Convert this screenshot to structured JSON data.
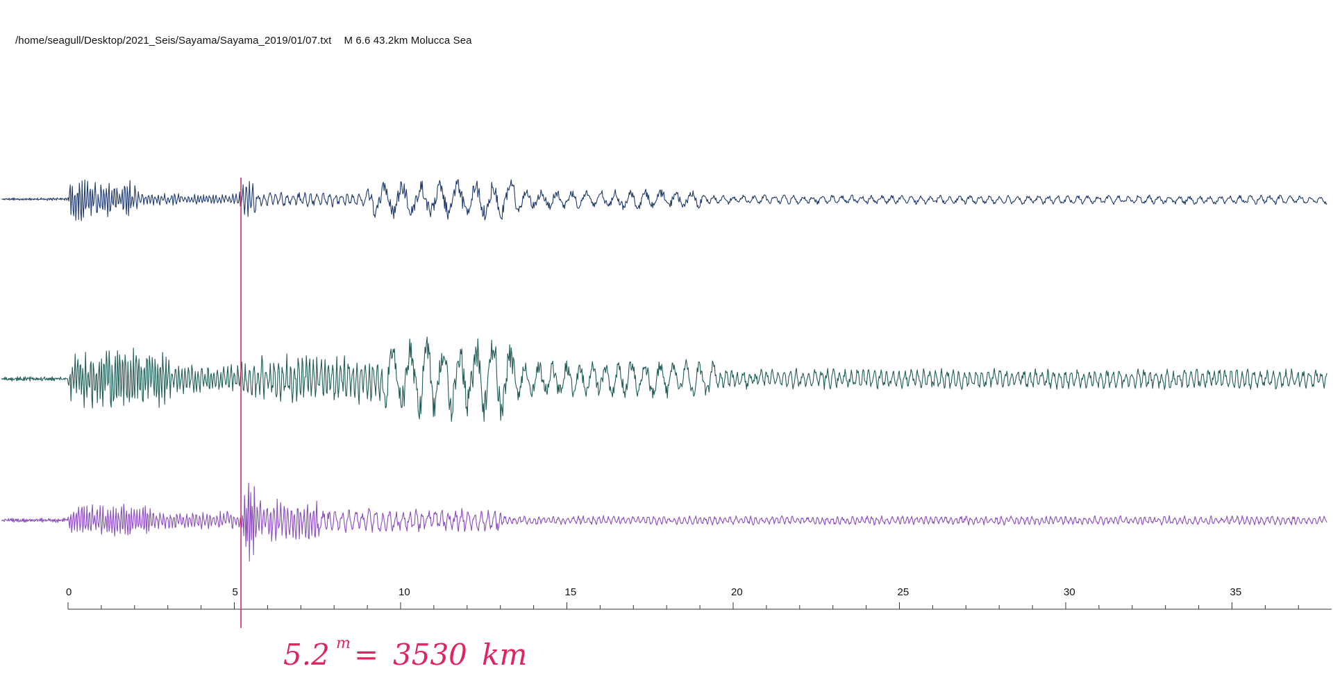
{
  "header": {
    "file_path": "/home/seagull/Desktop/2021_Seis/Sayama/Sayama_2019/01/07.txt",
    "event_info": "M 6.6 43.2km Molucca Sea"
  },
  "colors": {
    "trace_1": "#1f3a6e",
    "trace_2": "#1f5c55",
    "trace_3": "#8a4bbf",
    "marker": "#e0245e",
    "axis": "#333333"
  },
  "chart_data": {
    "type": "line",
    "title": "",
    "xlabel": "",
    "ylabel": "",
    "xlim": [
      0,
      38
    ],
    "x_ticks": [
      0,
      5,
      10,
      15,
      20,
      25,
      30,
      35
    ],
    "x_tick_labels": [
      "0",
      "5",
      "10",
      "15",
      "20",
      "25",
      "30",
      "35"
    ],
    "minor_tick_step": 1,
    "grid": false,
    "series": [
      {
        "trace": 1,
        "segments": [
          {
            "t0": -2.0,
            "t1": 0.0,
            "amp": 0.04,
            "period": 0.05
          },
          {
            "t0": 0.0,
            "t1": 0.3,
            "amp": 1.0,
            "period": 0.08
          },
          {
            "t0": 0.3,
            "t1": 2.0,
            "amp": 0.55,
            "period": 0.08
          },
          {
            "t0": 2.0,
            "t1": 5.1,
            "amp": 0.18,
            "period": 0.1
          },
          {
            "t0": 5.1,
            "t1": 5.6,
            "amp": 0.55,
            "period": 0.1
          },
          {
            "t0": 5.6,
            "t1": 9.0,
            "amp": 0.22,
            "period": 0.18
          },
          {
            "t0": 9.0,
            "t1": 13.5,
            "amp": 0.6,
            "period": 0.55
          },
          {
            "t0": 13.5,
            "t1": 19.0,
            "amp": 0.3,
            "period": 0.45
          },
          {
            "t0": 19.0,
            "t1": 38.0,
            "amp": 0.14,
            "period": 0.3
          }
        ],
        "drift_end": 0.18
      },
      {
        "trace": 2,
        "segments": [
          {
            "t0": -2.0,
            "t1": 0.0,
            "amp": 0.06,
            "period": 0.05
          },
          {
            "t0": 0.0,
            "t1": 3.0,
            "amp": 0.75,
            "period": 0.08
          },
          {
            "t0": 3.0,
            "t1": 5.1,
            "amp": 0.35,
            "period": 0.1
          },
          {
            "t0": 5.1,
            "t1": 9.5,
            "amp": 0.6,
            "period": 0.12
          },
          {
            "t0": 9.5,
            "t1": 13.5,
            "amp": 1.0,
            "period": 0.5
          },
          {
            "t0": 13.5,
            "t1": 19.5,
            "amp": 0.45,
            "period": 0.4
          },
          {
            "t0": 19.5,
            "t1": 38.0,
            "amp": 0.25,
            "period": 0.18
          }
        ],
        "drift_end": 0.0
      },
      {
        "trace": 3,
        "segments": [
          {
            "t0": -2.0,
            "t1": 0.0,
            "amp": 0.05,
            "period": 0.05
          },
          {
            "t0": 0.0,
            "t1": 2.5,
            "amp": 0.35,
            "period": 0.08
          },
          {
            "t0": 2.5,
            "t1": 5.2,
            "amp": 0.2,
            "period": 0.1
          },
          {
            "t0": 5.2,
            "t1": 5.6,
            "amp": 1.0,
            "period": 0.06
          },
          {
            "t0": 5.6,
            "t1": 7.5,
            "amp": 0.45,
            "period": 0.1
          },
          {
            "t0": 7.5,
            "t1": 13.0,
            "amp": 0.25,
            "period": 0.2
          },
          {
            "t0": 13.0,
            "t1": 38.0,
            "amp": 0.1,
            "period": 0.15
          }
        ],
        "drift_end": 0.0
      }
    ],
    "marker_x": 5.2
  },
  "annotation": {
    "time_value": "5.2",
    "time_unit": "m",
    "equals": "=",
    "distance": "3530",
    "distance_unit": "km"
  }
}
